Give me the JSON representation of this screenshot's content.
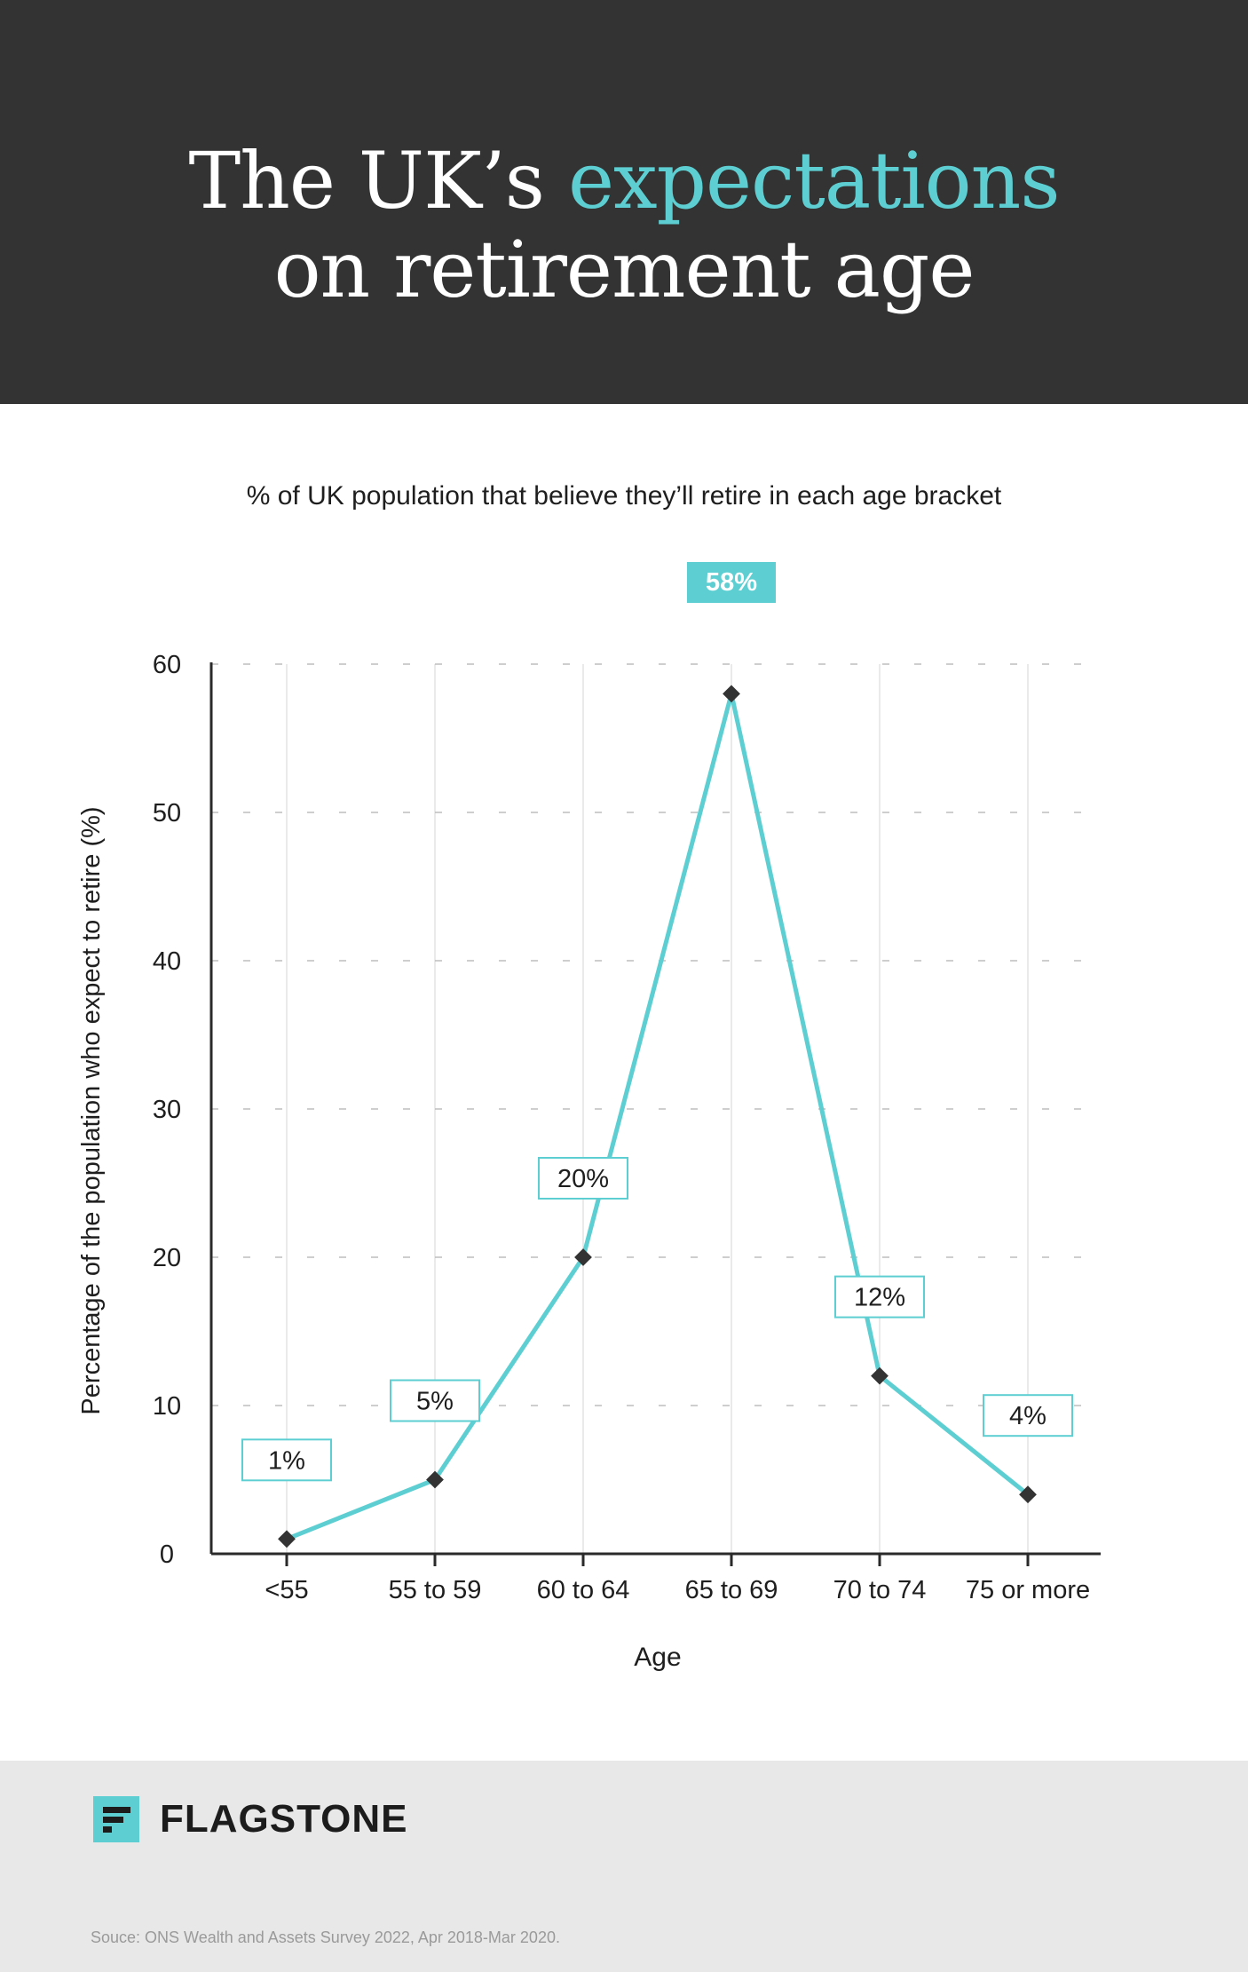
{
  "header": {
    "title_part1": "The UK’s ",
    "title_accent": "expectations",
    "title_line2": "on retirement age"
  },
  "subtitle": "% of UK population that believe they’ll retire in each age bracket",
  "colors": {
    "accent": "#5dcfd2",
    "header_bg": "#333333",
    "footer_bg": "#e8e8e8",
    "text": "#1e1e1e",
    "marker": "#333333"
  },
  "chart_data": {
    "type": "line",
    "title": "% of UK population that believe they’ll retire in each age bracket",
    "categories": [
      "<55",
      "55 to 59",
      "60 to 64",
      "65 to 69",
      "70 to 74",
      "75 or more"
    ],
    "values": [
      1,
      5,
      20,
      58,
      12,
      4
    ],
    "data_labels": [
      "1%",
      "5%",
      "20%",
      "58%",
      "12%",
      "4%"
    ],
    "highlight_index": 3,
    "xlabel": "Age",
    "ylabel": "Percentage of the population who expect to retire (%)",
    "ylim": [
      0,
      60
    ],
    "yticks": [
      0,
      10,
      20,
      30,
      40,
      50,
      60
    ],
    "grid": true
  },
  "footer": {
    "logo": "FLAGSTONE",
    "logo_icon": "flagstone-f-icon",
    "source": "Souce: ONS Wealth and Assets Survey 2022, Apr 2018-Mar 2020."
  }
}
